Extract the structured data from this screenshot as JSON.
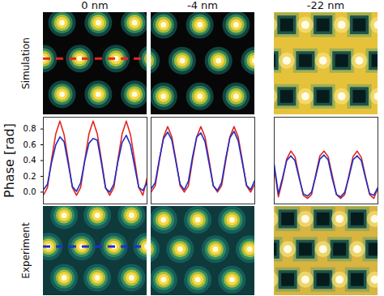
{
  "columns": [
    "0 nm",
    "-4 nm",
    "-22 nm"
  ],
  "row_labels": [
    "Simulation",
    "Experiment"
  ],
  "ylabel": "Phase [rad]",
  "chart_data": [
    {
      "type": "line",
      "x": [
        0,
        0.04,
        0.08,
        0.12,
        0.16,
        0.2,
        0.24,
        0.28,
        0.32,
        0.36,
        0.4,
        0.44,
        0.48,
        0.52,
        0.56,
        0.6,
        0.64,
        0.68,
        0.72,
        0.76,
        0.8,
        0.84,
        0.88,
        0.92,
        0.96,
        1
      ],
      "xlim": [
        0,
        1
      ],
      "ylim": [
        -0.15,
        0.95
      ],
      "yticks": [
        {
          "value": 0,
          "label": "0.0"
        },
        {
          "value": 0.2,
          "label": "0.2"
        },
        {
          "value": 0.4,
          "label": "0.4"
        },
        {
          "value": 0.6,
          "label": "0.6"
        },
        {
          "value": 0.8,
          "label": "0.8"
        }
      ],
      "tick_labels": "y",
      "series": [
        {
          "color": "#e3261f",
          "values": [
            -0.04,
            0.06,
            0.42,
            0.74,
            0.9,
            0.73,
            0.4,
            0.06,
            -0.04,
            0.06,
            0.41,
            0.74,
            0.9,
            0.74,
            0.41,
            0.06,
            -0.04,
            0.06,
            0.42,
            0.74,
            0.9,
            0.73,
            0.41,
            0.06,
            -0.04,
            0.18
          ]
        },
        {
          "color": "#1f2fc9",
          "values": [
            0.03,
            0.1,
            0.38,
            0.6,
            0.7,
            0.64,
            0.36,
            0.07,
            0.01,
            0.12,
            0.4,
            0.62,
            0.68,
            0.66,
            0.37,
            0.05,
            0.0,
            0.1,
            0.39,
            0.63,
            0.72,
            0.6,
            0.33,
            0.06,
            0.02,
            0.12
          ]
        }
      ]
    },
    {
      "type": "line",
      "x": [
        0,
        0.04,
        0.08,
        0.12,
        0.16,
        0.2,
        0.24,
        0.28,
        0.32,
        0.36,
        0.4,
        0.44,
        0.48,
        0.52,
        0.56,
        0.6,
        0.64,
        0.68,
        0.72,
        0.76,
        0.8,
        0.84,
        0.88,
        0.92,
        0.96,
        1
      ],
      "xlim": [
        0,
        1
      ],
      "ylim": [
        -0.15,
        0.95
      ],
      "yticks": [
        {
          "value": 0,
          "label": "0.0"
        },
        {
          "value": 0.2,
          "label": "0.2"
        },
        {
          "value": 0.4,
          "label": "0.4"
        },
        {
          "value": 0.6,
          "label": "0.6"
        },
        {
          "value": 0.8,
          "label": "0.8"
        }
      ],
      "tick_labels": false,
      "series": [
        {
          "color": "#e3261f",
          "values": [
            0.0,
            0.08,
            0.4,
            0.7,
            0.83,
            0.7,
            0.4,
            0.08,
            0.0,
            0.08,
            0.41,
            0.7,
            0.83,
            0.7,
            0.4,
            0.08,
            0.0,
            0.08,
            0.4,
            0.7,
            0.83,
            0.7,
            0.4,
            0.08,
            0.0,
            0.1
          ]
        },
        {
          "color": "#1f2fc9",
          "values": [
            0.04,
            0.12,
            0.42,
            0.68,
            0.76,
            0.66,
            0.38,
            0.1,
            0.03,
            0.14,
            0.45,
            0.7,
            0.75,
            0.64,
            0.36,
            0.08,
            0.02,
            0.12,
            0.43,
            0.69,
            0.77,
            0.65,
            0.37,
            0.09,
            0.03,
            0.15
          ]
        }
      ]
    },
    {
      "type": "line",
      "x": [
        0,
        0.04,
        0.08,
        0.12,
        0.16,
        0.2,
        0.24,
        0.28,
        0.32,
        0.36,
        0.4,
        0.44,
        0.48,
        0.52,
        0.56,
        0.6,
        0.64,
        0.68,
        0.72,
        0.76,
        0.8,
        0.84,
        0.88,
        0.92,
        0.96,
        1
      ],
      "xlim": [
        0,
        1
      ],
      "ylim": [
        -0.15,
        0.95
      ],
      "yticks": [
        {
          "value": 0,
          "label": "0.0"
        },
        {
          "value": 0.2,
          "label": "0.2"
        },
        {
          "value": 0.4,
          "label": "0.4"
        },
        {
          "value": 0.6,
          "label": "0.6"
        },
        {
          "value": 0.8,
          "label": "0.8"
        }
      ],
      "tick_labels": false,
      "series": [
        {
          "color": "#e3261f",
          "values": [
            0.3,
            -0.06,
            0.15,
            0.42,
            0.52,
            0.45,
            0.2,
            -0.04,
            -0.08,
            -0.03,
            0.22,
            0.46,
            0.52,
            0.45,
            0.21,
            -0.03,
            -0.08,
            -0.03,
            0.21,
            0.45,
            0.52,
            0.44,
            0.2,
            -0.03,
            -0.08,
            0.05
          ]
        },
        {
          "color": "#1f2fc9",
          "values": [
            0.35,
            -0.02,
            0.18,
            0.4,
            0.46,
            0.4,
            0.18,
            -0.02,
            -0.05,
            0.0,
            0.2,
            0.42,
            0.47,
            0.41,
            0.17,
            -0.03,
            -0.06,
            0.0,
            0.19,
            0.41,
            0.46,
            0.4,
            0.18,
            -0.02,
            -0.04,
            0.06
          ]
        }
      ]
    }
  ],
  "images": [
    {
      "color": "#070707",
      "spots": [
        [
          0.18,
          0.1
        ],
        [
          0.53,
          0.1
        ],
        [
          0.88,
          0.1
        ],
        [
          0.0,
          0.45
        ],
        [
          0.35,
          0.45
        ],
        [
          0.7,
          0.45
        ],
        [
          1.05,
          0.45
        ],
        [
          0.18,
          0.8
        ],
        [
          0.53,
          0.8
        ],
        [
          0.88,
          0.8
        ]
      ],
      "dark_spots": [],
      "profile": {
        "y": 0.45,
        "color": "#e3261f"
      }
    },
    {
      "color": "#070707",
      "spots": [
        [
          0.12,
          0.12
        ],
        [
          0.47,
          0.12
        ],
        [
          0.82,
          0.12
        ],
        [
          -0.05,
          0.47
        ],
        [
          0.3,
          0.47
        ],
        [
          0.65,
          0.47
        ],
        [
          1.0,
          0.47
        ],
        [
          0.12,
          0.82
        ],
        [
          0.47,
          0.82
        ],
        [
          0.82,
          0.82
        ]
      ],
      "dark_spots": []
    },
    {
      "color": "#e6c23a",
      "spots": [
        [
          -0.05,
          0.12
        ],
        [
          0.3,
          0.12
        ],
        [
          0.65,
          0.12
        ],
        [
          1.0,
          0.12
        ],
        [
          0.12,
          0.47
        ],
        [
          0.47,
          0.47
        ],
        [
          0.82,
          0.47
        ],
        [
          -0.05,
          0.82
        ],
        [
          0.3,
          0.82
        ],
        [
          0.65,
          0.82
        ],
        [
          1.0,
          0.82
        ]
      ],
      "dark_spots": [
        [
          0.12,
          0.12
        ],
        [
          0.47,
          0.12
        ],
        [
          0.82,
          0.12
        ],
        [
          -0.05,
          0.47
        ],
        [
          0.3,
          0.47
        ],
        [
          0.65,
          0.47
        ],
        [
          1.0,
          0.47
        ],
        [
          0.12,
          0.82
        ],
        [
          0.47,
          0.82
        ],
        [
          0.82,
          0.82
        ]
      ]
    },
    {
      "color": "#0f3a3c",
      "spots": [
        [
          0.2,
          0.1
        ],
        [
          0.52,
          0.1
        ],
        [
          0.85,
          0.1
        ],
        [
          0.05,
          0.45
        ],
        [
          0.37,
          0.45
        ],
        [
          0.68,
          0.45
        ],
        [
          1.0,
          0.45
        ],
        [
          0.2,
          0.8
        ],
        [
          0.52,
          0.8
        ],
        [
          0.85,
          0.8
        ]
      ],
      "dark_spots": [],
      "profile": {
        "y": 0.45,
        "color": "#1f2fc9"
      }
    },
    {
      "color": "#0f3a3c",
      "spots": [
        [
          0.12,
          0.15
        ],
        [
          0.45,
          0.15
        ],
        [
          0.78,
          0.15
        ],
        [
          -0.05,
          0.48
        ],
        [
          0.28,
          0.48
        ],
        [
          0.62,
          0.48
        ],
        [
          0.95,
          0.48
        ],
        [
          0.12,
          0.82
        ],
        [
          0.45,
          0.82
        ],
        [
          0.78,
          0.82
        ]
      ],
      "dark_spots": []
    },
    {
      "color": "#d8b440",
      "spots": [
        [
          -0.04,
          0.14
        ],
        [
          0.3,
          0.14
        ],
        [
          0.63,
          0.14
        ],
        [
          0.97,
          0.14
        ],
        [
          0.13,
          0.48
        ],
        [
          0.47,
          0.48
        ],
        [
          0.8,
          0.48
        ],
        [
          -0.04,
          0.82
        ],
        [
          0.3,
          0.82
        ],
        [
          0.63,
          0.82
        ],
        [
          0.97,
          0.82
        ]
      ],
      "dark_spots": [
        [
          0.13,
          0.14
        ],
        [
          0.47,
          0.14
        ],
        [
          0.8,
          0.14
        ],
        [
          -0.04,
          0.48
        ],
        [
          0.3,
          0.48
        ],
        [
          0.63,
          0.48
        ],
        [
          0.97,
          0.48
        ],
        [
          0.13,
          0.82
        ],
        [
          0.47,
          0.82
        ],
        [
          0.8,
          0.82
        ]
      ]
    }
  ]
}
